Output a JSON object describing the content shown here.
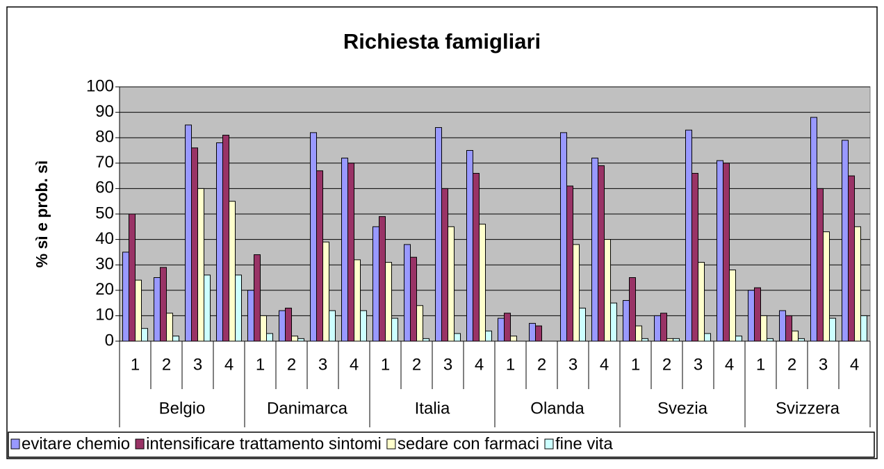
{
  "chart_data": {
    "type": "bar",
    "title": "Richiesta famigliari",
    "y_label": "% sì e prob. sì",
    "categories": [
      "1",
      "2",
      "3",
      "4",
      "1",
      "2",
      "3",
      "4",
      "1",
      "2",
      "3",
      "4",
      "1",
      "2",
      "3",
      "4",
      "1",
      "2",
      "3",
      "4",
      "1",
      "2",
      "3",
      "4"
    ],
    "groups": [
      "Belgio",
      "Danimarca",
      "Italia",
      "Olanda",
      "Svezia",
      "Svizzera"
    ],
    "series": [
      {
        "name": "evitare chemio",
        "color": "#9999ff",
        "values": [
          35,
          25,
          85,
          78,
          20,
          12,
          82,
          72,
          45,
          38,
          84,
          75,
          9,
          7,
          82,
          72,
          16,
          10,
          83,
          71,
          20,
          12,
          88,
          79
        ]
      },
      {
        "name": "intensificare trattamento sintomi",
        "color": "#993366",
        "values": [
          50,
          29,
          76,
          81,
          34,
          13,
          67,
          70,
          49,
          33,
          60,
          66,
          11,
          6,
          61,
          69,
          25,
          11,
          66,
          70,
          21,
          10,
          60,
          65
        ]
      },
      {
        "name": "sedare con farmaci",
        "color": "#ffffcc",
        "values": [
          24,
          11,
          60,
          55,
          10,
          2,
          39,
          32,
          31,
          14,
          45,
          46,
          2,
          0,
          38,
          40,
          6,
          1,
          31,
          28,
          10,
          4,
          43,
          45
        ]
      },
      {
        "name": "fine vita",
        "color": "#ccffff",
        "values": [
          5,
          2,
          26,
          26,
          3,
          1,
          12,
          12,
          9,
          1,
          3,
          4,
          0,
          0,
          13,
          15,
          1,
          1,
          3,
          2,
          1,
          1,
          9,
          10
        ]
      }
    ],
    "ylim": [
      0,
      100
    ],
    "yticks": [
      0,
      10,
      20,
      30,
      40,
      50,
      60,
      70,
      80,
      90,
      100
    ],
    "grid": true,
    "plot_background": "#c0c0c0",
    "legend": "bottom"
  }
}
